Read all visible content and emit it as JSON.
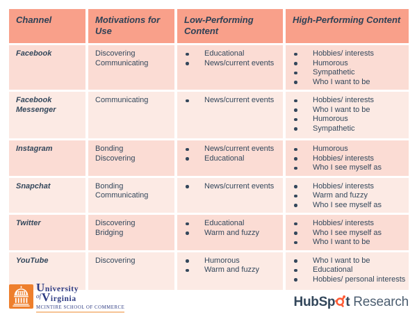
{
  "table": {
    "headers": [
      {
        "label": "Channel"
      },
      {
        "label": "Motivations for Use"
      },
      {
        "label": "Low-Performing Content"
      },
      {
        "label": "High-Performing Content"
      }
    ],
    "rows": [
      {
        "channel": "Facebook",
        "motivations": [
          "Discovering",
          "Communicating"
        ],
        "low": [
          "Educational",
          "News/current events"
        ],
        "high": [
          "Hobbies/ interests",
          "Humorous",
          "Sympathetic",
          "Who I want to be"
        ]
      },
      {
        "channel": "Facebook Messenger",
        "motivations": [
          "Communicating"
        ],
        "low": [
          "News/current events"
        ],
        "high": [
          "Hobbies/ interests",
          "Who I want to be",
          "Humorous",
          "Sympathetic"
        ]
      },
      {
        "channel": "Instagram",
        "motivations": [
          "Bonding",
          "Discovering"
        ],
        "low": [
          "News/current events",
          "Educational"
        ],
        "high": [
          "Humorous",
          "Hobbies/ interests",
          "Who I see myself as"
        ]
      },
      {
        "channel": "Snapchat",
        "motivations": [
          "Bonding",
          "Communicating"
        ],
        "low": [
          "News/current events"
        ],
        "high": [
          "Hobbies/ interests",
          "Warm and fuzzy",
          "Who I see myself as"
        ]
      },
      {
        "channel": "Twitter",
        "motivations": [
          "Discovering",
          "Bridging"
        ],
        "low": [
          "Educational",
          "Warm and fuzzy"
        ],
        "high": [
          "Hobbies/ interests",
          "Who I see myself as",
          "Who I want to be"
        ]
      },
      {
        "channel": "YouTube",
        "motivations": [
          "Discovering"
        ],
        "low": [
          "Humorous",
          "Warm and fuzzy"
        ],
        "high": [
          "Who I want to be",
          "Educational",
          "Hobbies/ personal interests"
        ]
      }
    ]
  },
  "footer": {
    "uva": {
      "line1": "University",
      "of": "of",
      "line2": "Virginia",
      "school": "McIntire School of Commerce"
    },
    "hubspot": {
      "pre": "HubSp",
      "post": "t",
      "research": "Research"
    }
  },
  "colors": {
    "header_bg": "#f9a08a",
    "row_odd_bg": "#fbdcd4",
    "row_even_bg": "#fceae4",
    "text_navy": "#33475b",
    "uva_blue": "#2c3a82",
    "uva_orange": "#ee7f2d",
    "hubspot_orange": "#ff5c35"
  }
}
